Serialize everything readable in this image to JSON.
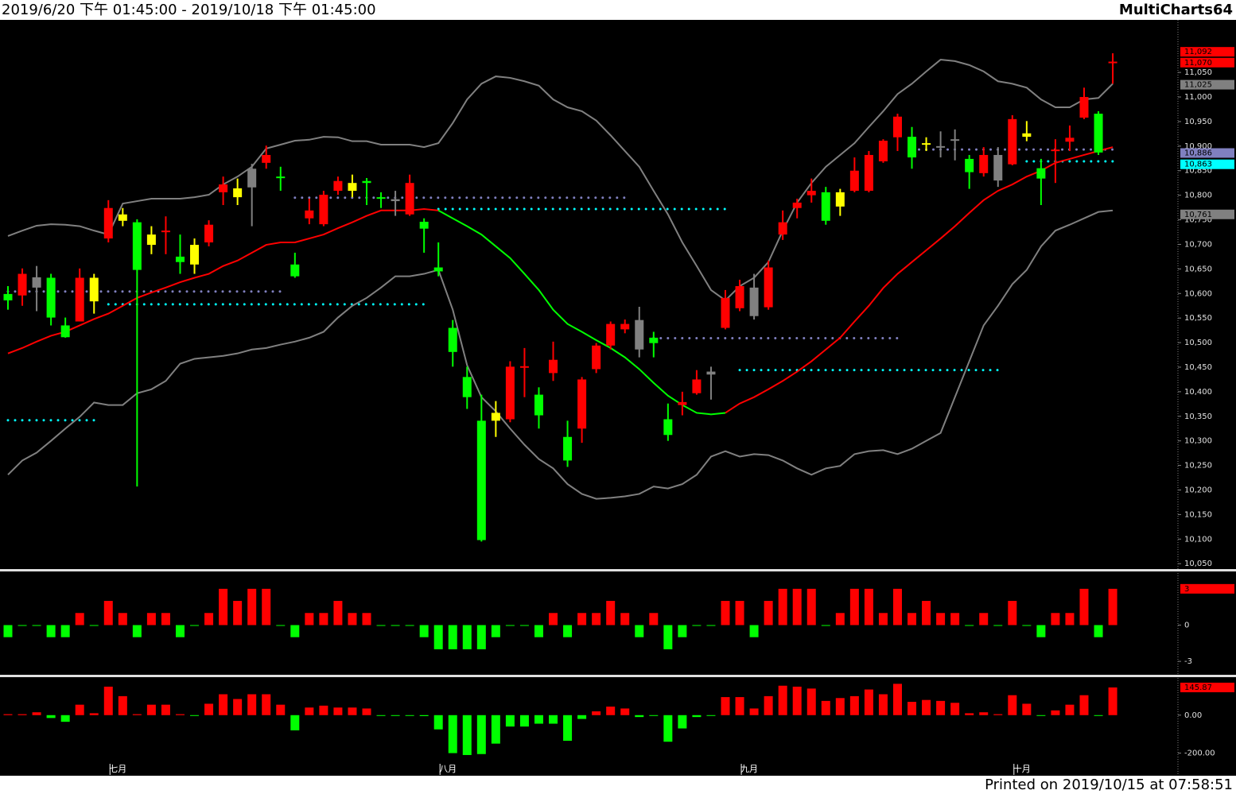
{
  "header": {
    "range": "2019/6/20 下午 01:45:00 - 2019/10/18 下午 01:45:00",
    "app": "MultiCharts64"
  },
  "footer": {
    "printed": "Printed on 2019/10/15 at 07:58:51"
  },
  "chart_data": [
    {
      "type": "candlestick",
      "categories": [
        null,
        null,
        null,
        null,
        null,
        null,
        null,
        "七月",
        null,
        null,
        null,
        null,
        null,
        null,
        null,
        null,
        null,
        null,
        null,
        null,
        null,
        null,
        null,
        null,
        null,
        null,
        null,
        null,
        null,
        null,
        "八月",
        null,
        null,
        null,
        null,
        null,
        null,
        null,
        null,
        null,
        null,
        null,
        null,
        null,
        null,
        null,
        null,
        null,
        null,
        null,
        null,
        "九月",
        null,
        null,
        null,
        null,
        null,
        null,
        null,
        null,
        null,
        null,
        null,
        null,
        null,
        null,
        null,
        null,
        null,
        null,
        "十月",
        null,
        null,
        null,
        null,
        null,
        null,
        null
      ],
      "open": [
        10599,
        10596,
        10633,
        10632,
        10535,
        10543,
        10584,
        10712,
        10761,
        10745,
        10720,
        10725,
        10675,
        10659,
        10704,
        10806,
        10814,
        10854,
        10866,
        10838,
        10659,
        10753,
        10741,
        10809,
        10825,
        10829,
        10796,
        10792,
        10761,
        10746,
        10653,
        10530,
        10430,
        10341,
        10357,
        10344,
        10451,
        10394,
        10438,
        10308,
        10325,
        10446,
        10494,
        10527,
        10546,
        10510,
        10344,
        10373,
        10397,
        10441,
        10530,
        10570,
        10612,
        10572,
        10720,
        10774,
        10800,
        10806,
        10806,
        10809,
        10809,
        10869,
        10918,
        10919,
        10906,
        10900,
        10914,
        10874,
        10845,
        10882,
        10863,
        10926,
        10855,
        10890,
        10909,
        10958,
        10966,
        11069
      ],
      "high": [
        10615,
        10651,
        10656,
        10640,
        10551,
        10651,
        10640,
        10790,
        10774,
        10751,
        10737,
        10757,
        10720,
        10712,
        10749,
        10838,
        10834,
        10864,
        10901,
        10858,
        10683,
        10793,
        10809,
        10838,
        10842,
        10835,
        10806,
        10809,
        10842,
        10753,
        10704,
        10546,
        10451,
        10394,
        10381,
        10462,
        10489,
        10409,
        10502,
        10341,
        10430,
        10499,
        10543,
        10547,
        10573,
        10522,
        10376,
        10400,
        10444,
        10451,
        10607,
        10628,
        10640,
        10667,
        10769,
        10793,
        10834,
        10817,
        10813,
        10877,
        10890,
        10914,
        10966,
        10939,
        10918,
        10930,
        10934,
        10882,
        10898,
        10898,
        10963,
        10951,
        10874,
        10914,
        10942,
        11019,
        10971,
        11089
      ],
      "low": [
        10567,
        10575,
        10564,
        10535,
        10510,
        10543,
        10559,
        10704,
        10737,
        10207,
        10680,
        10680,
        10640,
        10640,
        10696,
        10780,
        10780,
        10737,
        10854,
        10809,
        10632,
        10741,
        10737,
        10801,
        10796,
        10780,
        10774,
        10758,
        10758,
        10683,
        10635,
        10451,
        10365,
        10095,
        10308,
        10338,
        10389,
        10325,
        10422,
        10247,
        10296,
        10438,
        10486,
        10519,
        10470,
        10470,
        10300,
        10352,
        10394,
        10384,
        10527,
        10564,
        10547,
        10567,
        10709,
        10753,
        10785,
        10740,
        10758,
        10806,
        10806,
        10866,
        10890,
        10854,
        10890,
        10877,
        10871,
        10813,
        10838,
        10817,
        10861,
        10910,
        10780,
        10825,
        10890,
        10955,
        10882,
        11027
      ],
      "close": [
        10586,
        10640,
        10612,
        10551,
        10511,
        10632,
        10632,
        10774,
        10748,
        10648,
        10699,
        10728,
        10664,
        10699,
        10740,
        10822,
        10796,
        10816,
        10882,
        10835,
        10635,
        10769,
        10801,
        10829,
        10809,
        10825,
        10793,
        10788,
        10825,
        10732,
        10645,
        10481,
        10389,
        10098,
        10341,
        10451,
        10452,
        10352,
        10465,
        10260,
        10425,
        10494,
        10538,
        10538,
        10486,
        10499,
        10312,
        10379,
        10425,
        10435,
        10591,
        10615,
        10554,
        10653,
        10745,
        10785,
        10809,
        10748,
        10777,
        10850,
        10882,
        10911,
        10960,
        10877,
        10903,
        10897,
        10911,
        10847,
        10882,
        10830,
        10955,
        10919,
        10834,
        10893,
        10917,
        11000,
        10887,
        11072
      ],
      "colors": [
        "#00ff00",
        "#ff0000",
        "#808080",
        "#00ff00",
        "#00ff00",
        "#ff0000",
        "#ffff00",
        "#ff0000",
        "#ffff00",
        "#00ff00",
        "#ffff00",
        "#ff0000",
        "#00ff00",
        "#ffff00",
        "#ff0000",
        "#ff0000",
        "#ffff00",
        "#808080",
        "#ff0000",
        "#00ff00",
        "#00ff00",
        "#ff0000",
        "#ff0000",
        "#ff0000",
        "#ffff00",
        "#00ff00",
        "#00ff00",
        "#808080",
        "#ff0000",
        "#00ff00",
        "#00ff00",
        "#00ff00",
        "#00ff00",
        "#00ff00",
        "#ffff00",
        "#ff0000",
        "#ff0000",
        "#00ff00",
        "#ff0000",
        "#00ff00",
        "#ff0000",
        "#ff0000",
        "#ff0000",
        "#ff0000",
        "#808080",
        "#00ff00",
        "#00ff00",
        "#ff0000",
        "#ff0000",
        "#808080",
        "#ff0000",
        "#ff0000",
        "#808080",
        "#ff0000",
        "#ff0000",
        "#ff0000",
        "#ff0000",
        "#00ff00",
        "#ffff00",
        "#ff0000",
        "#ff0000",
        "#ff0000",
        "#ff0000",
        "#00ff00",
        "#ffff00",
        "#808080",
        "#808080",
        "#00ff00",
        "#ff0000",
        "#808080",
        "#ff0000",
        "#ffff00",
        "#00ff00",
        "#ff0000",
        "#ff0000",
        "#ff0000",
        "#00ff00",
        "#ff0000"
      ],
      "lines": [
        {
          "color": "#808080",
          "values": [
            10717,
            10728,
            10738,
            10741,
            10740,
            10737,
            10728,
            10720,
            10783,
            10788,
            10793,
            10793,
            10793,
            10796,
            10801,
            10822,
            10838,
            10858,
            10895,
            10903,
            10911,
            10913,
            10919,
            10918,
            10910,
            10910,
            10903,
            10903,
            10903,
            10898,
            10906,
            10947,
            10995,
            11027,
            11042,
            11039,
            11032,
            11023,
            10995,
            10979,
            10971,
            10952,
            10922,
            10890,
            10858,
            10809,
            10761,
            10704,
            10656,
            10607,
            10586,
            10615,
            10632,
            10664,
            10728,
            10785,
            10825,
            10858,
            10882,
            10906,
            10939,
            10971,
            11006,
            11027,
            11052,
            11076,
            11073,
            11065,
            11052,
            11032,
            11027,
            11019,
            10995,
            10979,
            10979,
            10995,
            10998,
            11027
          ]
        },
        {
          "color": "#808080",
          "values": [
            10231,
            10260,
            10276,
            10300,
            10325,
            10349,
            10378,
            10373,
            10373,
            10397,
            10405,
            10422,
            10457,
            10467,
            10470,
            10473,
            10478,
            10486,
            10489,
            10496,
            10502,
            10510,
            10522,
            10551,
            10575,
            10591,
            10612,
            10635,
            10635,
            10640,
            10648,
            10567,
            10454,
            10389,
            10360,
            10325,
            10292,
            10263,
            10244,
            10212,
            10192,
            10182,
            10184,
            10187,
            10192,
            10207,
            10203,
            10212,
            10231,
            10268,
            10279,
            10268,
            10273,
            10271,
            10260,
            10244,
            10231,
            10244,
            10249,
            10273,
            10279,
            10281,
            10273,
            10284,
            10300,
            10316,
            10389,
            10462,
            10535,
            10575,
            10619,
            10648,
            10696,
            10728,
            10740,
            10753,
            10766,
            10769
          ]
        },
        {
          "color": "#ff0000",
          "values": [
            10478,
            10489,
            10502,
            10514,
            10522,
            10535,
            10548,
            10559,
            10575,
            10591,
            10602,
            10612,
            10623,
            10632,
            10640,
            10656,
            10667,
            10683,
            10699,
            10704,
            10704,
            10712,
            10720,
            10733,
            10745,
            10758,
            10769,
            10769,
            10769,
            10772,
            10769,
            null,
            null,
            null,
            null,
            null,
            null,
            null,
            null,
            null,
            null,
            null,
            null,
            null,
            null,
            null,
            null,
            null,
            null,
            null,
            10357,
            10376,
            10389,
            10405,
            10422,
            10441,
            10462,
            10486,
            10510,
            10543,
            10575,
            10611,
            10640,
            10664,
            10688,
            10712,
            10737,
            10764,
            10790,
            10809,
            10822,
            10838,
            10850,
            10866,
            10874,
            10882,
            10890,
            10898
          ]
        },
        {
          "color": "#00ff00",
          "values": [
            null,
            null,
            null,
            null,
            null,
            null,
            null,
            null,
            null,
            null,
            null,
            null,
            null,
            null,
            null,
            null,
            null,
            null,
            null,
            null,
            null,
            null,
            null,
            null,
            null,
            null,
            null,
            null,
            null,
            null,
            10769,
            10753,
            10737,
            10720,
            10696,
            10672,
            10640,
            10607,
            10567,
            10538,
            10522,
            10505,
            10489,
            10470,
            10446,
            10418,
            10392,
            10373,
            10357,
            10354,
            10357,
            null,
            null,
            null,
            null,
            null,
            null,
            null,
            null,
            null,
            null,
            null,
            null,
            null,
            null,
            null,
            null,
            null,
            null,
            null,
            null,
            null,
            null,
            null,
            null,
            null,
            null,
            null
          ]
        }
      ],
      "levels": [
        {
          "value": 10604,
          "color": "#8080c0",
          "start": 0,
          "end": 19
        },
        {
          "value": 10578,
          "color": "#00ffff",
          "start": 7,
          "end": 29
        },
        {
          "value": 10342,
          "color": "#00ffff",
          "start": 0,
          "end": 6
        },
        {
          "value": 10795,
          "color": "#8080c0",
          "start": 20,
          "end": 43
        },
        {
          "value": 10772,
          "color": "#00ffff",
          "start": 30,
          "end": 50
        },
        {
          "value": 10509,
          "color": "#8080c0",
          "start": 45,
          "end": 62
        },
        {
          "value": 10444,
          "color": "#00ffff",
          "start": 51,
          "end": 69
        },
        {
          "value": 10893,
          "color": "#8080c0",
          "start": 63,
          "end": 77
        },
        {
          "value": 10869,
          "color": "#00ffff",
          "start": 71,
          "end": 77
        }
      ],
      "ylim": [
        10039,
        11157
      ],
      "yticks": [
        {
          "value": 10050,
          "label": "10,050"
        },
        {
          "value": 10100,
          "label": "10,100"
        },
        {
          "value": 10150,
          "label": "10,150"
        },
        {
          "value": 10200,
          "label": "10,200"
        },
        {
          "value": 10250,
          "label": "10,250"
        },
        {
          "value": 10300,
          "label": "10,300"
        },
        {
          "value": 10350,
          "label": "10,350"
        },
        {
          "value": 10400,
          "label": "10,400"
        },
        {
          "value": 10450,
          "label": "10,450"
        },
        {
          "value": 10500,
          "label": "10,500"
        },
        {
          "value": 10550,
          "label": "10,550"
        },
        {
          "value": 10600,
          "label": "10,600"
        },
        {
          "value": 10650,
          "label": "10,650"
        },
        {
          "value": 10700,
          "label": "10,700"
        },
        {
          "value": 10750,
          "label": "10,750"
        },
        {
          "value": 10800,
          "label": "10,800"
        },
        {
          "value": 10850,
          "label": "10,850"
        },
        {
          "value": 10900,
          "label": "10,900"
        },
        {
          "value": 10950,
          "label": "10,950"
        },
        {
          "value": 11000,
          "label": "11,000"
        },
        {
          "value": 11050,
          "label": "11,050"
        }
      ],
      "tags": [
        {
          "value": 11092,
          "label": "11,092",
          "color": "#ff0000"
        },
        {
          "value": 11070,
          "label": "11,070",
          "color": "#ff0000"
        },
        {
          "value": 11025,
          "label": "11,025",
          "color": "#808080"
        },
        {
          "value": 10886,
          "label": "10,886",
          "color": "#8080c0"
        },
        {
          "value": 10863,
          "label": "10,863",
          "color": "#00ffff"
        },
        {
          "value": 10761,
          "label": "10,761",
          "color": "#808080"
        }
      ]
    },
    {
      "type": "bar",
      "values": [
        -1,
        0,
        0,
        -1,
        -1,
        1,
        0,
        2,
        1,
        -1,
        1,
        1,
        -1,
        0,
        1,
        3,
        2,
        3,
        3,
        0,
        -1,
        1,
        1,
        2,
        1,
        1,
        0,
        0,
        0,
        -1,
        -2,
        -2,
        -2,
        -2,
        -1,
        0,
        0,
        -1,
        1,
        -1,
        1,
        1,
        2,
        1,
        -1,
        1,
        -2,
        -1,
        0,
        0,
        2,
        2,
        -1,
        2,
        3,
        3,
        3,
        0,
        1,
        3,
        3,
        1,
        3,
        1,
        2,
        1,
        1,
        0,
        1,
        0,
        2,
        0,
        -1,
        1,
        1,
        3,
        -1,
        3
      ],
      "up_color": "#ff0000",
      "down_color": "#00ff00",
      "ylim": [
        -4.11,
        4.37
      ],
      "yticks": [
        0,
        -3
      ],
      "tags": [
        {
          "value": 3,
          "color": "#ff0000"
        }
      ]
    },
    {
      "type": "bar",
      "values": [
        5,
        5,
        15,
        -15,
        -35,
        55,
        10,
        150,
        100,
        5,
        55,
        55,
        5,
        0,
        60,
        110,
        85,
        110,
        110,
        55,
        -80,
        40,
        50,
        40,
        40,
        35,
        0,
        0,
        0,
        -5,
        -75,
        -200,
        -210,
        -205,
        -150,
        -60,
        -60,
        -45,
        -45,
        -135,
        -20,
        20,
        45,
        35,
        -10,
        0,
        -140,
        -70,
        -10,
        0,
        95,
        95,
        35,
        100,
        155,
        150,
        140,
        75,
        90,
        100,
        135,
        110,
        165,
        70,
        80,
        75,
        65,
        10,
        15,
        5,
        105,
        60,
        0,
        25,
        55,
        105,
        0,
        145.87
      ],
      "up_color": "#ff0000",
      "down_color": "#00ff00",
      "ylim": [
        -319,
        200
      ],
      "yticks": [
        {
          "value": 0,
          "label": "0.00"
        },
        {
          "value": -200,
          "label": "-200.00"
        }
      ],
      "tags": [
        {
          "value": 145.87,
          "color": "#ff0000"
        }
      ]
    }
  ]
}
